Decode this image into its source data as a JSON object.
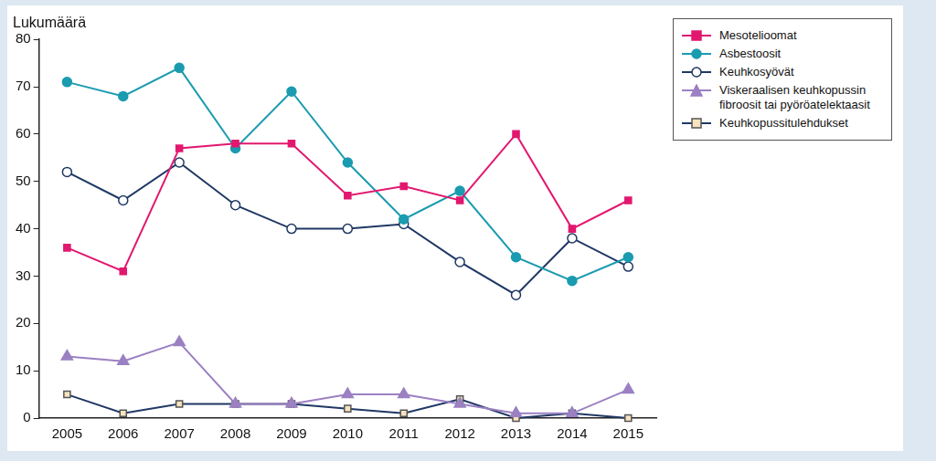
{
  "chart_data": {
    "type": "line",
    "ylabel": "Lukumäärä",
    "categories": [
      "2005",
      "2006",
      "2007",
      "2008",
      "2009",
      "2010",
      "2011",
      "2012",
      "2013",
      "2014",
      "2015"
    ],
    "series": [
      {
        "name": "Mesotelioomat",
        "color": "#e2186f",
        "marker": "square",
        "values": [
          36,
          31,
          57,
          58,
          58,
          47,
          49,
          46,
          60,
          40,
          46
        ]
      },
      {
        "name": "Asbestoosit",
        "color": "#1a9bb0",
        "marker": "circle",
        "values": [
          71,
          68,
          74,
          57,
          69,
          54,
          42,
          48,
          34,
          29,
          34
        ]
      },
      {
        "name": "Keuhkosyövät",
        "color": "#1f3864",
        "marker": "open circle",
        "values": [
          52,
          46,
          54,
          45,
          40,
          40,
          41,
          33,
          26,
          38,
          32
        ]
      },
      {
        "name": "Viskeraalisen keuhkopussin fibroosit tai pyöröatelektaasit",
        "color": "#9b80c2",
        "marker": "triangle",
        "values": [
          13,
          12,
          16,
          3,
          3,
          5,
          5,
          3,
          1,
          1,
          6
        ]
      },
      {
        "name": "Keuhkopussitulehdukset",
        "color": "#1f3864",
        "marker": "open square",
        "values": [
          5,
          1,
          3,
          3,
          3,
          2,
          1,
          4,
          0,
          1,
          0
        ]
      }
    ],
    "ylim": [
      0,
      80
    ],
    "yticks": [
      0,
      10,
      20,
      30,
      40,
      50,
      60,
      70,
      80
    ],
    "grid": false,
    "legend": "top-right"
  }
}
